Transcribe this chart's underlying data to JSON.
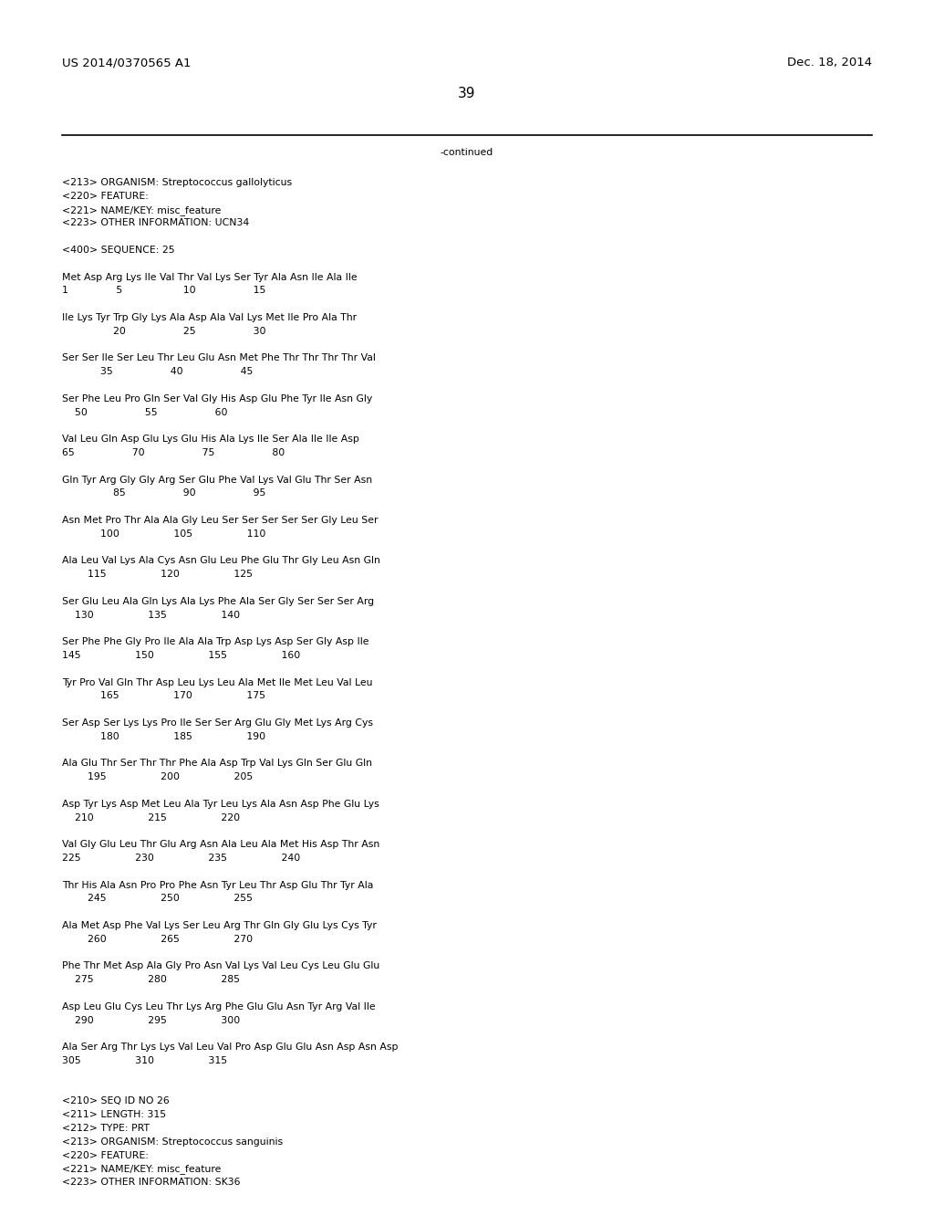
{
  "header_left": "US 2014/0370565 A1",
  "header_right": "Dec. 18, 2014",
  "page_number": "39",
  "continued_label": "-continued",
  "body_lines": [
    "<213> ORGANISM: Streptococcus gallolyticus",
    "<220> FEATURE:",
    "<221> NAME/KEY: misc_feature",
    "<223> OTHER INFORMATION: UCN34",
    "",
    "<400> SEQUENCE: 25",
    "",
    "Met Asp Arg Lys Ile Val Thr Val Lys Ser Tyr Ala Asn Ile Ala Ile",
    "1               5                   10                  15",
    "",
    "Ile Lys Tyr Trp Gly Lys Ala Asp Ala Val Lys Met Ile Pro Ala Thr",
    "                20                  25                  30",
    "",
    "Ser Ser Ile Ser Leu Thr Leu Glu Asn Met Phe Thr Thr Thr Thr Val",
    "            35                  40                  45",
    "",
    "Ser Phe Leu Pro Gln Ser Val Gly His Asp Glu Phe Tyr Ile Asn Gly",
    "    50                  55                  60",
    "",
    "Val Leu Gln Asp Glu Lys Glu His Ala Lys Ile Ser Ala Ile Ile Asp",
    "65                  70                  75                  80",
    "",
    "Gln Tyr Arg Gly Gly Arg Ser Glu Phe Val Lys Val Glu Thr Ser Asn",
    "                85                  90                  95",
    "",
    "Asn Met Pro Thr Ala Ala Gly Leu Ser Ser Ser Ser Ser Gly Leu Ser",
    "            100                 105                 110",
    "",
    "Ala Leu Val Lys Ala Cys Asn Glu Leu Phe Glu Thr Gly Leu Asn Gln",
    "        115                 120                 125",
    "",
    "Ser Glu Leu Ala Gln Lys Ala Lys Phe Ala Ser Gly Ser Ser Ser Arg",
    "    130                 135                 140",
    "",
    "Ser Phe Phe Gly Pro Ile Ala Ala Trp Asp Lys Asp Ser Gly Asp Ile",
    "145                 150                 155                 160",
    "",
    "Tyr Pro Val Gln Thr Asp Leu Lys Leu Ala Met Ile Met Leu Val Leu",
    "            165                 170                 175",
    "",
    "Ser Asp Ser Lys Lys Pro Ile Ser Ser Arg Glu Gly Met Lys Arg Cys",
    "            180                 185                 190",
    "",
    "Ala Glu Thr Ser Thr Thr Phe Ala Asp Trp Val Lys Gln Ser Glu Gln",
    "        195                 200                 205",
    "",
    "Asp Tyr Lys Asp Met Leu Ala Tyr Leu Lys Ala Asn Asp Phe Glu Lys",
    "    210                 215                 220",
    "",
    "Val Gly Glu Leu Thr Glu Arg Asn Ala Leu Ala Met His Asp Thr Asn",
    "225                 230                 235                 240",
    "",
    "Thr His Ala Asn Pro Pro Phe Asn Tyr Leu Thr Asp Glu Thr Tyr Ala",
    "        245                 250                 255",
    "",
    "Ala Met Asp Phe Val Lys Ser Leu Arg Thr Gln Gly Glu Lys Cys Tyr",
    "        260                 265                 270",
    "",
    "Phe Thr Met Asp Ala Gly Pro Asn Val Lys Val Leu Cys Leu Glu Glu",
    "    275                 280                 285",
    "",
    "Asp Leu Glu Cys Leu Thr Lys Arg Phe Glu Glu Asn Tyr Arg Val Ile",
    "    290                 295                 300",
    "",
    "Ala Ser Arg Thr Lys Lys Val Leu Val Pro Asp Glu Glu Asn Asp Asn Asp",
    "305                 310                 315",
    "",
    "",
    "<210> SEQ ID NO 26",
    "<211> LENGTH: 315",
    "<212> TYPE: PRT",
    "<213> ORGANISM: Streptococcus sanguinis",
    "<220> FEATURE:",
    "<221> NAME/KEY: misc_feature",
    "<223> OTHER INFORMATION: SK36"
  ],
  "font_family": "Courier New",
  "font_size_body": 7.8,
  "font_size_header": 9.5,
  "font_size_page_num": 11,
  "bg_color": "#ffffff",
  "text_color": "#000000"
}
